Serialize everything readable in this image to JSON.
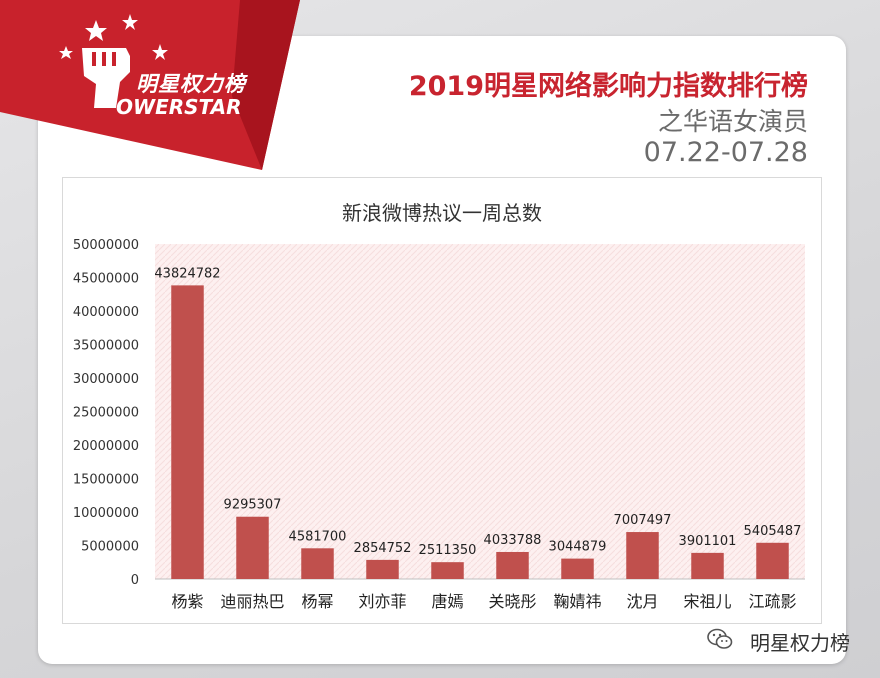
{
  "brand": {
    "logo_cn": "明星权力榜",
    "logo_en": "OWERSTAR",
    "accent": "#c8242f"
  },
  "header": {
    "title": "2019明星网络影响力指数排行榜",
    "subtitle": "之华语女演员",
    "date_range": "07.22-07.28"
  },
  "footer": {
    "account": "明星权力榜",
    "icon": "wechat-icon"
  },
  "chart_data": {
    "type": "bar",
    "title": "新浪微博热议一周总数",
    "categories": [
      "杨紫",
      "迪丽热巴",
      "杨幂",
      "刘亦菲",
      "唐嫣",
      "关晓彤",
      "鞠婧祎",
      "沈月",
      "宋祖儿",
      "江疏影"
    ],
    "values": [
      43824782,
      9295307,
      4581700,
      2854752,
      2511350,
      4033788,
      3044879,
      7007497,
      3901101,
      5405487
    ],
    "ylim": [
      0,
      50000000
    ],
    "yticks": [
      0,
      5000000,
      10000000,
      15000000,
      20000000,
      25000000,
      30000000,
      35000000,
      40000000,
      45000000,
      50000000
    ],
    "xlabel": "",
    "ylabel": "",
    "grid": false,
    "bar_color": "#c0504d",
    "data_labels": true
  }
}
